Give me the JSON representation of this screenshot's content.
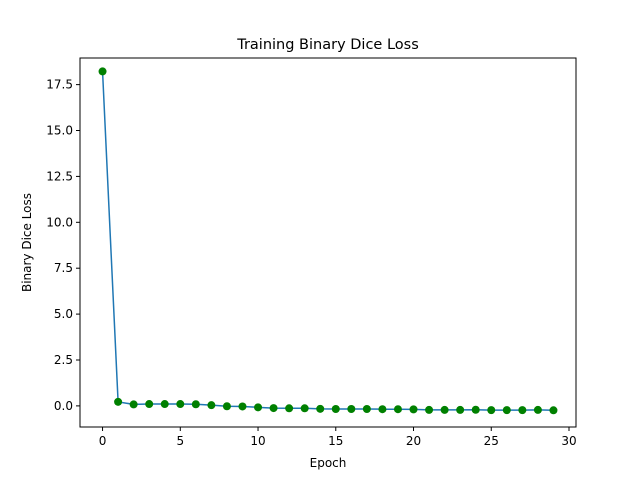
{
  "chart_data": {
    "type": "line",
    "title": "Training Binary Dice Loss",
    "xlabel": "Epoch",
    "ylabel": "Binary Dice Loss",
    "xlim": [
      -1.45,
      30.45
    ],
    "ylim": [
      -1.15,
      18.95
    ],
    "x_ticks": [
      0,
      5,
      10,
      15,
      20,
      25,
      30
    ],
    "x_tick_labels": [
      "0",
      "5",
      "10",
      "15",
      "20",
      "25",
      "30"
    ],
    "y_ticks": [
      0.0,
      2.5,
      5.0,
      7.5,
      10.0,
      12.5,
      15.0,
      17.5
    ],
    "y_tick_labels": [
      "0.0",
      "2.5",
      "5.0",
      "7.5",
      "10.0",
      "12.5",
      "15.0",
      "17.5"
    ],
    "grid": false,
    "line_color": "#1f77b4",
    "marker_color": "#008000",
    "series": [
      {
        "x": [
          0,
          1,
          2,
          3,
          4,
          5,
          6,
          7,
          8,
          9,
          10,
          11,
          12,
          13,
          14,
          15,
          16,
          17,
          18,
          19,
          20,
          21,
          22,
          23,
          24,
          25,
          26,
          27,
          28,
          29
        ],
        "values": [
          18.22,
          0.22,
          0.08,
          0.1,
          0.1,
          0.1,
          0.09,
          0.04,
          -0.02,
          -0.03,
          -0.08,
          -0.12,
          -0.13,
          -0.13,
          -0.16,
          -0.17,
          -0.17,
          -0.17,
          -0.18,
          -0.18,
          -0.19,
          -0.22,
          -0.22,
          -0.22,
          -0.21,
          -0.23,
          -0.23,
          -0.23,
          -0.22,
          -0.24
        ]
      }
    ]
  }
}
